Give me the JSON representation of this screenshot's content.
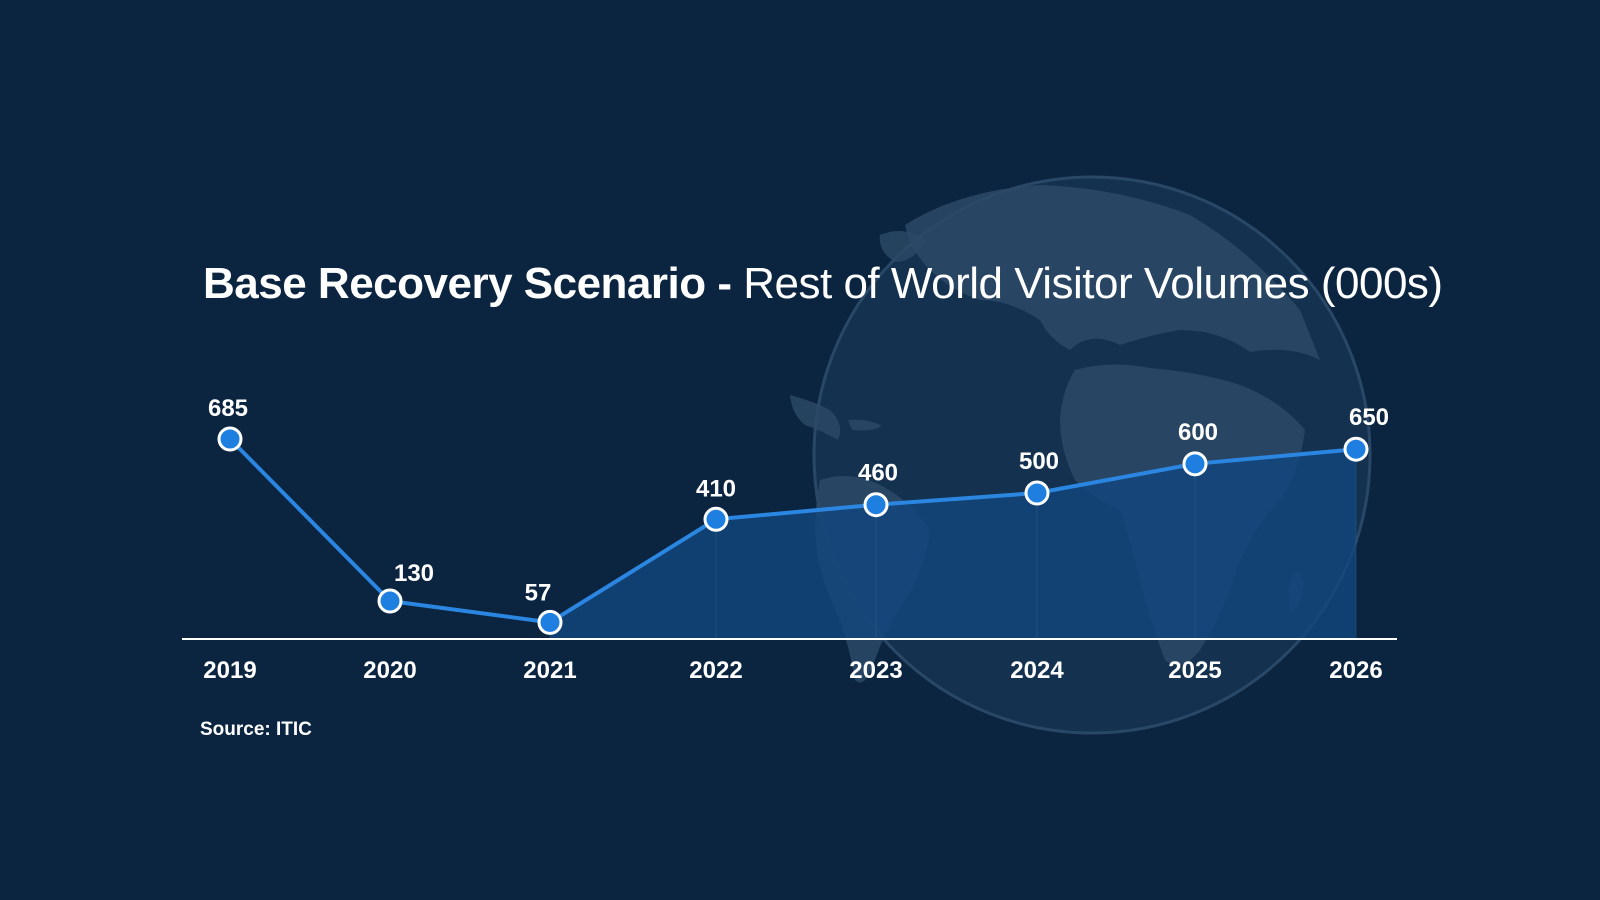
{
  "title": {
    "bold": "Base Recovery Scenario -",
    "light": "Rest of World Visitor Volumes (000s)"
  },
  "source": "Source: ITIC",
  "colors": {
    "background": "#0b2440",
    "line": "#2a86e0",
    "marker": "#1f7fe0",
    "fill": "#12467f",
    "globe": "#2c4a67",
    "text": "#ffffff"
  },
  "chart_data": {
    "type": "line",
    "title": "Base Recovery Scenario - Rest of World Visitor Volumes (000s)",
    "xlabel": "",
    "ylabel": "",
    "categories": [
      "2019",
      "2020",
      "2021",
      "2022",
      "2023",
      "2024",
      "2025",
      "2026"
    ],
    "series": [
      {
        "values": [
          685,
          130,
          57,
          410,
          460,
          500,
          600,
          650
        ],
        "data_labels": [
          "685",
          "130",
          "57",
          "410",
          "460",
          "500",
          "600",
          "650"
        ]
      }
    ],
    "shaded_area_from": "2021",
    "ylim": [
      0,
      700
    ],
    "grid": false,
    "legend": "none"
  }
}
